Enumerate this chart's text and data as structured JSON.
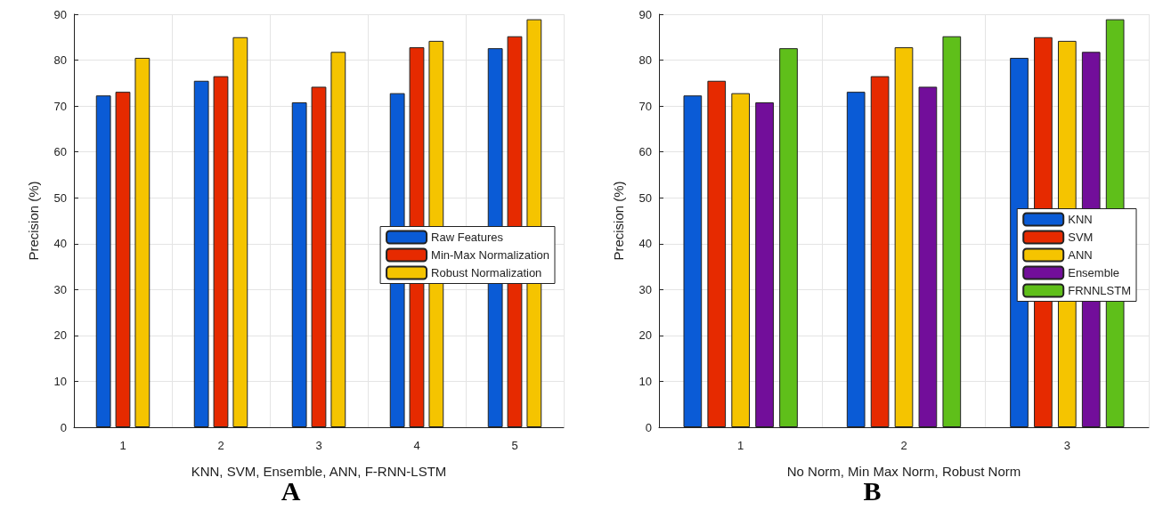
{
  "chart_data": [
    {
      "type": "bar",
      "title": "A",
      "xlabel": "KNN, SVM, Ensemble, ANN, F-RNN-LSTM",
      "ylabel": "Precision (%)",
      "categories": [
        "1",
        "2",
        "3",
        "4",
        "5"
      ],
      "series": [
        {
          "name": "Raw Features",
          "color": "#0a5bd6",
          "values": [
            72.3,
            75.5,
            70.8,
            72.8,
            82.6
          ]
        },
        {
          "name": "Min-Max Normalization",
          "color": "#e62a00",
          "values": [
            73.1,
            76.5,
            74.2,
            82.8,
            85.2
          ]
        },
        {
          "name": "Robust Normalization",
          "color": "#f5c400",
          "values": [
            80.5,
            85,
            81.8,
            84.2,
            88.9
          ]
        }
      ],
      "ylim": [
        0,
        90
      ],
      "yticks": [
        0,
        10,
        20,
        30,
        40,
        50,
        60,
        70,
        80,
        90
      ],
      "grid": true,
      "legend": "right"
    },
    {
      "type": "bar",
      "title": "B",
      "xlabel": "No Norm, Min Max Norm, Robust Norm",
      "ylabel": "Precision (%)",
      "categories": [
        "1",
        "2",
        "3"
      ],
      "series": [
        {
          "name": "KNN",
          "color": "#0a5bd6",
          "values": [
            72.3,
            73.1,
            80.5
          ]
        },
        {
          "name": "SVM",
          "color": "#e62a00",
          "values": [
            75.5,
            76.5,
            85
          ]
        },
        {
          "name": "ANN",
          "color": "#f5c400",
          "values": [
            72.8,
            82.8,
            84.2
          ]
        },
        {
          "name": "Ensemble",
          "color": "#720e9a",
          "values": [
            70.8,
            74.2,
            81.8
          ]
        },
        {
          "name": "FRNNLSTM",
          "color": "#5fbf1a",
          "values": [
            82.6,
            85.2,
            88.9
          ]
        }
      ],
      "ylim": [
        0,
        90
      ],
      "yticks": [
        0,
        10,
        20,
        30,
        40,
        50,
        60,
        70,
        80,
        90
      ],
      "grid": true,
      "legend": "right"
    }
  ]
}
